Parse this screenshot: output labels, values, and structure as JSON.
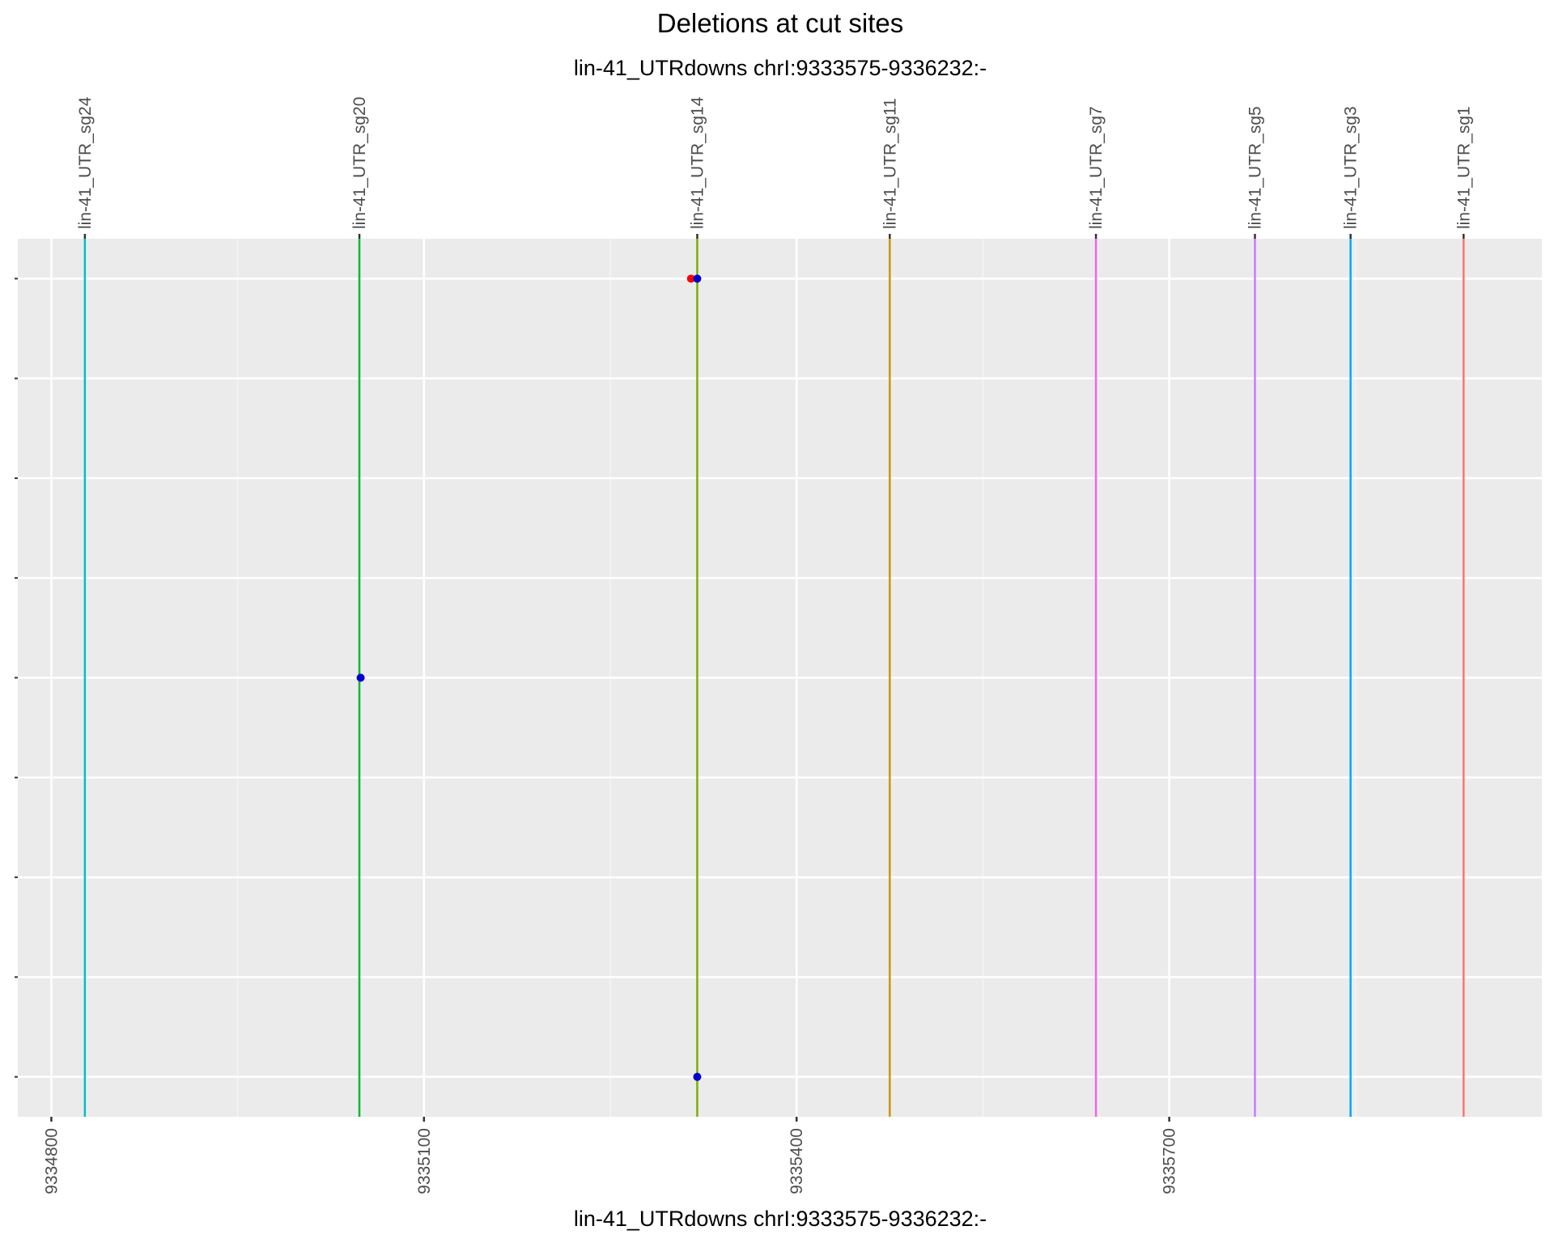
{
  "chart_data": {
    "type": "scatter",
    "title": "Deletions at cut sites",
    "subtitle": "lin-41_UTRdowns chrI:9333575-9336232:-",
    "xlabel": "lin-41_UTRdowns chrI:9333575-9336232:-",
    "ylabel": "",
    "xlim": [
      9334773,
      9336000
    ],
    "ylim": [
      0.6,
      9.4
    ],
    "x_ticks": [
      9334800,
      9335100,
      9335400,
      9335700
    ],
    "x_tick_labels": [
      "9334800",
      "9335100",
      "9335400",
      "9335700"
    ],
    "x_minor_ticks": [
      9334950,
      9335250,
      9335550,
      9335850
    ],
    "y_ticks": [
      1,
      2,
      3,
      4,
      5,
      6,
      7,
      8,
      9
    ],
    "y_tick_labels": [
      "",
      "",
      "",
      "",
      "",
      "",
      "",
      "",
      ""
    ],
    "grid": true,
    "legend": "none",
    "cut_sites": [
      {
        "name": "lin-41_UTR_sg24",
        "x": 9334827,
        "color": "#00BFC4"
      },
      {
        "name": "lin-41_UTR_sg20",
        "x": 9335048,
        "color": "#00BA38"
      },
      {
        "name": "lin-41_UTR_sg14",
        "x": 9335320,
        "color": "#7CAE00"
      },
      {
        "name": "lin-41_UTR_sg11",
        "x": 9335475,
        "color": "#CD9600"
      },
      {
        "name": "lin-41_UTR_sg7",
        "x": 9335641,
        "color": "#F564E3"
      },
      {
        "name": "lin-41_UTR_sg5",
        "x": 9335769,
        "color": "#C77CFF"
      },
      {
        "name": "lin-41_UTR_sg3",
        "x": 9335846,
        "color": "#00A9FF"
      },
      {
        "name": "lin-41_UTR_sg1",
        "x": 9335937,
        "color": "#F8766D"
      }
    ],
    "series": [
      {
        "color": "#FF0000",
        "points": [
          {
            "x": 9335315,
            "y": 9
          }
        ]
      },
      {
        "color": "#0000CD",
        "points": [
          {
            "x": 9335320,
            "y": 9
          },
          {
            "x": 9335049,
            "y": 5
          },
          {
            "x": 9335320,
            "y": 1
          }
        ]
      }
    ]
  }
}
